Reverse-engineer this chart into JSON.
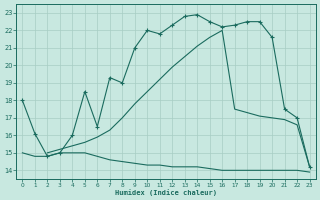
{
  "xlabel": "Humidex (Indice chaleur)",
  "xlim": [
    -0.5,
    23.5
  ],
  "ylim": [
    13.5,
    23.5
  ],
  "xticks": [
    0,
    1,
    2,
    3,
    4,
    5,
    6,
    7,
    8,
    9,
    10,
    11,
    12,
    13,
    14,
    15,
    16,
    17,
    18,
    19,
    20,
    21,
    22,
    23
  ],
  "yticks": [
    14,
    15,
    16,
    17,
    18,
    19,
    20,
    21,
    22,
    23
  ],
  "bg_color": "#c8e8e0",
  "line_color": "#1a6b5e",
  "grid_color": "#a8cec4",
  "upper_x": [
    0,
    1,
    2,
    3,
    4,
    5,
    6,
    7,
    8,
    9,
    10,
    11,
    12,
    13,
    14,
    15,
    16,
    17,
    18,
    19,
    20,
    21,
    22,
    23
  ],
  "upper_y": [
    18.0,
    16.1,
    14.8,
    15.0,
    16.0,
    18.5,
    16.5,
    19.3,
    19.0,
    21.0,
    22.0,
    21.8,
    22.3,
    22.8,
    22.9,
    22.5,
    22.2,
    22.3,
    22.5,
    22.5,
    21.6,
    17.5,
    17.0,
    14.2
  ],
  "lower_x": [
    0,
    1,
    2,
    3,
    4,
    5,
    6,
    7,
    8,
    9,
    10,
    11,
    12,
    13,
    14,
    15,
    16,
    17,
    18,
    19,
    20,
    21,
    22,
    23
  ],
  "lower_y": [
    15.0,
    14.8,
    14.8,
    15.0,
    15.0,
    15.0,
    14.8,
    14.6,
    14.5,
    14.4,
    14.3,
    14.3,
    14.2,
    14.2,
    14.2,
    14.1,
    14.0,
    14.0,
    14.0,
    14.0,
    14.0,
    14.0,
    14.0,
    13.9
  ],
  "diag_x": [
    2,
    3,
    4,
    5,
    6,
    7,
    8,
    9,
    10,
    11,
    12,
    13,
    14,
    15,
    16,
    17,
    18,
    19,
    20,
    21,
    22,
    23
  ],
  "diag_y": [
    15.0,
    15.2,
    15.4,
    15.6,
    15.9,
    16.3,
    17.0,
    17.8,
    18.5,
    19.2,
    19.9,
    20.5,
    21.1,
    21.6,
    22.0,
    17.5,
    17.3,
    17.1,
    17.0,
    16.9,
    16.6,
    14.2
  ]
}
